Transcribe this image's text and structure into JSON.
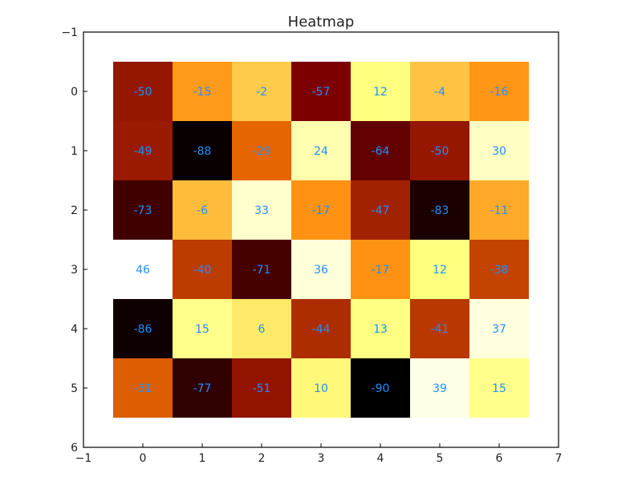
{
  "chart_data": {
    "type": "heatmap",
    "title": "Heatmap",
    "xlabel": "",
    "ylabel": "",
    "xlim": [
      -1,
      7
    ],
    "ylim": [
      6,
      -1
    ],
    "x_ticks": [
      "−1",
      "0",
      "1",
      "2",
      "3",
      "4",
      "5",
      "6",
      "7"
    ],
    "y_ticks": [
      "−1",
      "0",
      "1",
      "2",
      "3",
      "4",
      "5",
      "6"
    ],
    "colormap": "afmhot",
    "color_range": [
      -90,
      46
    ],
    "label_color": "#1e90ff",
    "grid": false,
    "rows": [
      [
        -50,
        -15,
        -2,
        -57,
        12,
        -4,
        -16
      ],
      [
        -49,
        -88,
        -29,
        24,
        -64,
        -50,
        30
      ],
      [
        -73,
        -6,
        33,
        -17,
        -47,
        -83,
        -11
      ],
      [
        46,
        -40,
        -71,
        36,
        -17,
        12,
        -38
      ],
      [
        -86,
        15,
        6,
        -44,
        13,
        -41,
        37
      ],
      [
        -31,
        -77,
        -51,
        10,
        -90,
        39,
        15
      ]
    ]
  }
}
